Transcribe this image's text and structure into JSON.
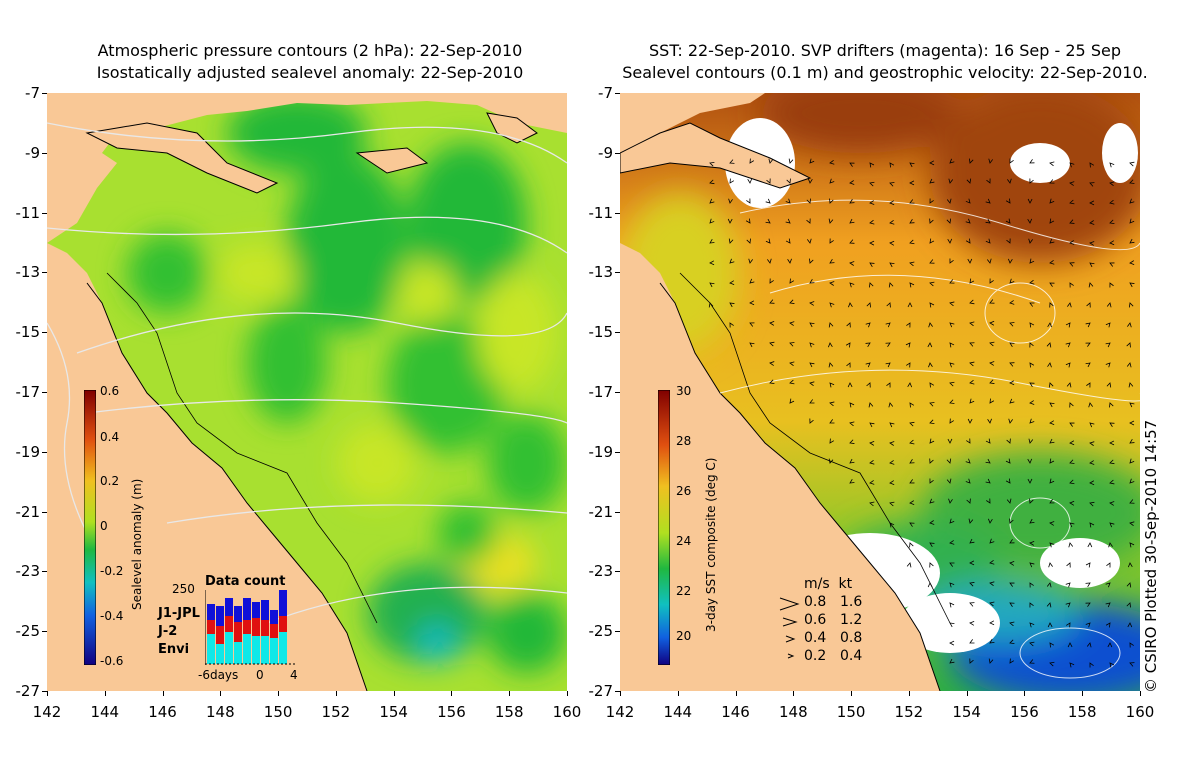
{
  "left_panel": {
    "title_line1": "Atmospheric pressure contours (2 hPa): 22-Sep-2010",
    "title_line2": "Isostatically adjusted sealevel anomaly: 22-Sep-2010",
    "colorbar": {
      "title": "Sealevel anomaly (m)",
      "ticks": [
        "0.6",
        "0.4",
        "0.2",
        "0",
        "-0.2",
        "-0.4",
        "-0.6"
      ],
      "range": [
        -0.6,
        0.6
      ]
    },
    "data_count": {
      "title": "Data count",
      "y_max": "250",
      "series": [
        {
          "name": "J1-JPL",
          "color": "#1010d8"
        },
        {
          "name": "J-2",
          "color": "#e01010"
        },
        {
          "name": "Envi",
          "color": "#10e8e8"
        }
      ],
      "x_ticks": [
        "-6days",
        "0",
        "4"
      ]
    }
  },
  "right_panel": {
    "title_line1": "SST: 22-Sep-2010. SVP drifters (magenta): 16 Sep - 25 Sep",
    "title_line2": "Sealevel contours (0.1 m) and geostrophic velocity: 22-Sep-2010.",
    "colorbar": {
      "title": "3-day SST composite (deg C)",
      "ticks": [
        "30",
        "28",
        "26",
        "24",
        "22",
        "20"
      ],
      "range": [
        19,
        30
      ]
    },
    "velocity_legend": {
      "header": "m/s  kt",
      "rows": [
        {
          "ms": "0.8",
          "kt": "1.6"
        },
        {
          "ms": "0.6",
          "kt": "1.2"
        },
        {
          "ms": "0.4",
          "kt": "0.8"
        },
        {
          "ms": "0.2",
          "kt": "0.4"
        }
      ]
    }
  },
  "axes": {
    "y_ticks": [
      "-7",
      "-9",
      "-11",
      "-13",
      "-15",
      "-17",
      "-19",
      "-21",
      "-23",
      "-25",
      "-27"
    ],
    "x_ticks": [
      "142",
      "144",
      "146",
      "148",
      "150",
      "152",
      "154",
      "156",
      "158",
      "160"
    ],
    "lat_range": [
      -27,
      -7
    ],
    "lon_range": [
      142,
      160
    ]
  },
  "watermark": "© CSIRO Plotted 30-Sep-2010 14:57",
  "colors": {
    "land": "#f9c896",
    "ocean_left": "#a8e030",
    "ocean_right": "#f0a820"
  }
}
